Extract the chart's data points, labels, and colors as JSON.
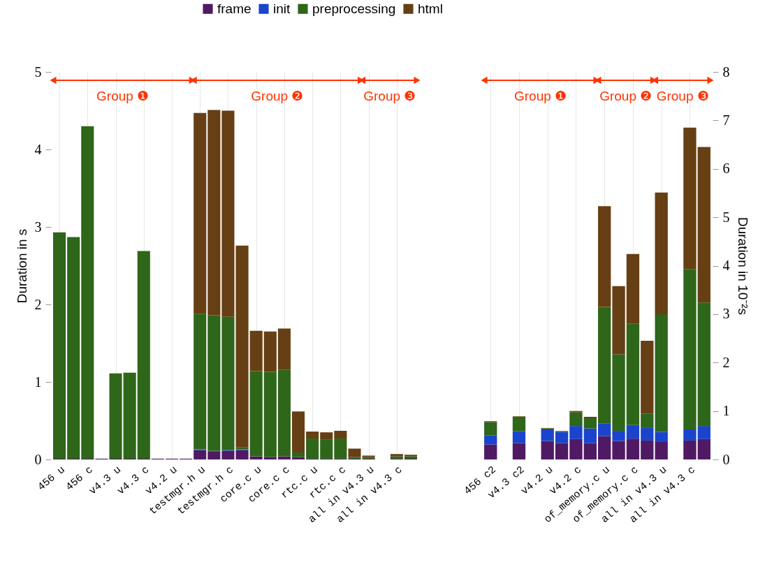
{
  "chart_data": [
    {
      "type": "bar",
      "stacked": true,
      "ylabel": "Duration in s",
      "ylim": [
        0,
        5
      ],
      "yticks": [
        0,
        1,
        2,
        3,
        4,
        5
      ],
      "grid": "x",
      "legend": "top",
      "categories": [
        "456 u",
        null,
        "456 c",
        null,
        "v4.3 u",
        null,
        "v4.3 c",
        null,
        "v4.2 u",
        null,
        "testmgr.h u",
        null,
        "testmgr.h c",
        null,
        "core.c u",
        null,
        "core.c c",
        null,
        "rtc.c u",
        null,
        "rtc.c c",
        null,
        "all in v4.3 u",
        null,
        "all in v4.3 c",
        null
      ],
      "series": [
        {
          "name": "frame",
          "color": "#4f1a63",
          "values": [
            0.01,
            0.01,
            0.01,
            0.01,
            0.01,
            0.01,
            0.01,
            0.01,
            0.01,
            0.01,
            0.12,
            0.1,
            0.11,
            0.12,
            0.04,
            0.03,
            0.04,
            0.03,
            0.01,
            0.01,
            0.01,
            0.01,
            0.01,
            null,
            0.01,
            0.01
          ]
        },
        {
          "name": "init",
          "color": "#1a44cc",
          "values": [
            0,
            0,
            0,
            0,
            0,
            0,
            0,
            0,
            0,
            0,
            0.01,
            0.01,
            0.01,
            0.01,
            0,
            0,
            0,
            0,
            0,
            0,
            0,
            0,
            0,
            null,
            0,
            0
          ]
        },
        {
          "name": "preprocessing",
          "color": "#2e661a",
          "values": [
            2.92,
            2.86,
            4.29,
            0,
            1.1,
            1.11,
            2.68,
            0,
            0,
            0,
            1.75,
            1.75,
            1.72,
            0.03,
            1.1,
            1.1,
            1.12,
            0.06,
            0.26,
            0.25,
            0.26,
            0.02,
            0.02,
            null,
            0.03,
            0.03
          ]
        },
        {
          "name": "html",
          "color": "#663f14",
          "values": [
            0,
            0,
            0,
            0,
            0,
            0,
            0,
            0,
            0,
            0,
            2.59,
            2.65,
            2.66,
            2.6,
            0.52,
            0.52,
            0.53,
            0.53,
            0.09,
            0.09,
            0.1,
            0.11,
            0.02,
            null,
            0.03,
            0.02
          ]
        }
      ],
      "annotations": [
        "Group ❶",
        "Group ❷",
        "Group ❸"
      ]
    },
    {
      "type": "bar",
      "stacked": true,
      "legend": "top",
      "y2label": "Duration in 10⁻²s",
      "y2lim": [
        0,
        8
      ],
      "y2ticks": [
        0,
        1,
        2,
        3,
        4,
        5,
        6,
        7,
        8
      ],
      "grid": "x",
      "categories": [
        "456 c2",
        null,
        "v4.3 c2",
        null,
        "v4.2 u",
        null,
        "v4.2 c",
        null,
        "of_memory.c u",
        null,
        "of_memory.c c",
        null,
        "all in v4.3 u",
        null,
        "all in v4.3 c",
        null
      ],
      "series": [
        {
          "name": "frame",
          "color": "#4f1a63",
          "axis": "y2",
          "values": [
            0.31,
            null,
            0.34,
            null,
            0.38,
            0.34,
            0.42,
            0.34,
            0.48,
            0.38,
            0.43,
            0.39,
            0.36,
            null,
            0.39,
            0.42
          ]
        },
        {
          "name": "init",
          "color": "#1a44cc",
          "axis": "y2",
          "values": [
            0.19,
            null,
            0.24,
            null,
            0.24,
            0.23,
            0.27,
            0.3,
            0.26,
            0.21,
            0.28,
            0.26,
            0.21,
            null,
            0.23,
            0.27
          ]
        },
        {
          "name": "preprocessing",
          "color": "#2e661a",
          "axis": "y2",
          "values": [
            0.27,
            null,
            0.3,
            null,
            0.02,
            0.01,
            0.28,
            0.21,
            2.41,
            1.58,
            2.09,
            0.29,
            2.43,
            null,
            3.31,
            2.55
          ]
        },
        {
          "name": "html",
          "color": "#663f14",
          "axis": "y2",
          "values": [
            0.02,
            null,
            0.01,
            null,
            0.01,
            0.01,
            0.03,
            0.03,
            2.08,
            1.41,
            1.44,
            1.51,
            2.51,
            null,
            2.92,
            3.21
          ]
        }
      ],
      "annotations": [
        "Group ❶",
        "Group ❷",
        "Group ❸"
      ]
    }
  ]
}
